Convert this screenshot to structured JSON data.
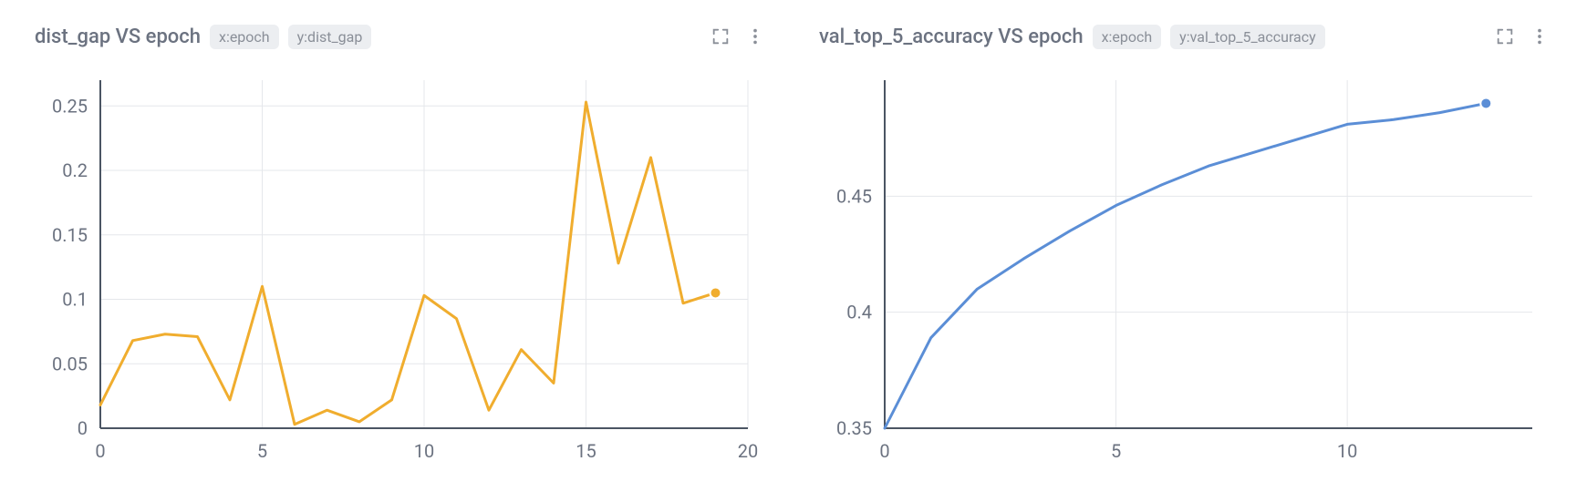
{
  "panels": [
    {
      "id": "dist_gap",
      "title": "dist_gap VS epoch",
      "x_pill": "x:epoch",
      "y_pill": "y:dist_gap",
      "chart": {
        "type": "line",
        "line_color": "#f0ad2e",
        "end_point_color": "#f0ad2e",
        "background_color": "#ffffff",
        "grid_color": "#e5e7eb",
        "axis_color": "#4b5563",
        "tick_color": "#6b7280",
        "line_width": 3,
        "tick_fontsize": 20,
        "xlim": [
          0,
          20
        ],
        "ylim": [
          0,
          0.27
        ],
        "x_ticks": [
          0,
          5,
          10,
          15,
          20
        ],
        "y_ticks": [
          0,
          0.05,
          0.1,
          0.15,
          0.2,
          0.25
        ],
        "x_values": [
          0,
          1,
          2,
          3,
          4,
          5,
          6,
          7,
          8,
          9,
          10,
          11,
          12,
          13,
          14,
          15,
          16,
          17,
          18,
          19
        ],
        "y_values": [
          0.018,
          0.068,
          0.073,
          0.071,
          0.022,
          0.11,
          0.003,
          0.014,
          0.005,
          0.022,
          0.103,
          0.085,
          0.014,
          0.061,
          0.035,
          0.253,
          0.128,
          0.21,
          0.097,
          0.105
        ],
        "show_end_point": true
      }
    },
    {
      "id": "val_top5",
      "title": "val_top_5_accuracy VS epoch",
      "x_pill": "x:epoch",
      "y_pill": "y:val_top_5_accuracy",
      "chart": {
        "type": "line",
        "line_color": "#5b8ed6",
        "end_point_color": "#5b8ed6",
        "background_color": "#ffffff",
        "grid_color": "#e5e7eb",
        "axis_color": "#4b5563",
        "tick_color": "#6b7280",
        "line_width": 3,
        "tick_fontsize": 20,
        "xlim": [
          0,
          14
        ],
        "ylim": [
          0.35,
          0.5
        ],
        "x_ticks": [
          0,
          5,
          10
        ],
        "y_ticks": [
          0.35,
          0.4,
          0.45
        ],
        "x_values": [
          0,
          1,
          2,
          3,
          4,
          5,
          6,
          7,
          8,
          9,
          10,
          11,
          12,
          13
        ],
        "y_values": [
          0.35,
          0.389,
          0.41,
          0.423,
          0.435,
          0.446,
          0.455,
          0.463,
          0.469,
          0.475,
          0.481,
          0.483,
          0.486,
          0.49
        ],
        "show_end_point": true
      }
    }
  ],
  "ui": {
    "title_color": "#6b7280",
    "pill_bg": "#eceef1",
    "pill_text": "#8a8f98",
    "icon_color": "#8a8f98"
  }
}
